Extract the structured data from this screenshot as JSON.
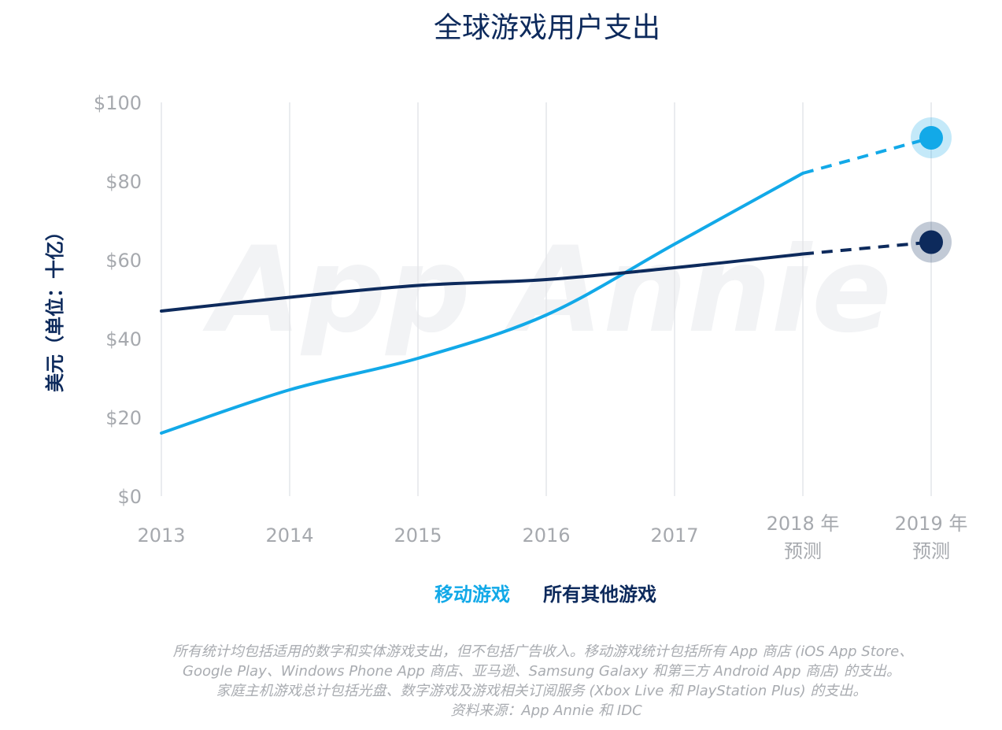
{
  "chart_data": {
    "type": "line",
    "title": "全球游戏用户支出",
    "ylabel": "美元（单位：十亿）",
    "y_ticks": [
      "$100",
      "$80",
      "$60",
      "$40",
      "$20",
      "$0"
    ],
    "ylim": [
      0,
      100
    ],
    "x": [
      "2013",
      "2014",
      "2015",
      "2016",
      "2017",
      "2018 年预测",
      "2019 年预测"
    ],
    "x_tick_labels": [
      {
        "line1": "2013",
        "line2": ""
      },
      {
        "line1": "2014",
        "line2": ""
      },
      {
        "line1": "2015",
        "line2": ""
      },
      {
        "line1": "2016",
        "line2": ""
      },
      {
        "line1": "2017",
        "line2": ""
      },
      {
        "line1": "2018 年",
        "line2": "预测"
      },
      {
        "line1": "2019 年",
        "line2": "预测"
      }
    ],
    "grid": true,
    "legend_position": "bottom-center",
    "forecast_from_index": 5,
    "series": [
      {
        "name": "移动游戏",
        "color": "#12a9e8",
        "values": [
          16,
          27,
          35,
          46,
          64,
          82,
          91
        ]
      },
      {
        "name": "所有其他游戏",
        "color": "#0d2a5c",
        "values": [
          47,
          50.5,
          53.5,
          55,
          58,
          61.5,
          64.5
        ]
      }
    ],
    "watermark": "App Annie",
    "notes": [
      "所有统计均包括适用的数字和实体游戏支出，但不包括广告收入。移动游戏统计包括所有 App 商店 (iOS App Store、",
      "Google Play、Windows Phone App 商店、亚马逊、Samsung Galaxy 和第三方 Android App 商店) 的支出。",
      "家庭主机游戏总计包括光盘、数字游戏及游戏相关订阅服务 (Xbox Live 和 PlayStation Plus) 的支出。",
      "资料来源：App Annie 和 IDC"
    ]
  }
}
